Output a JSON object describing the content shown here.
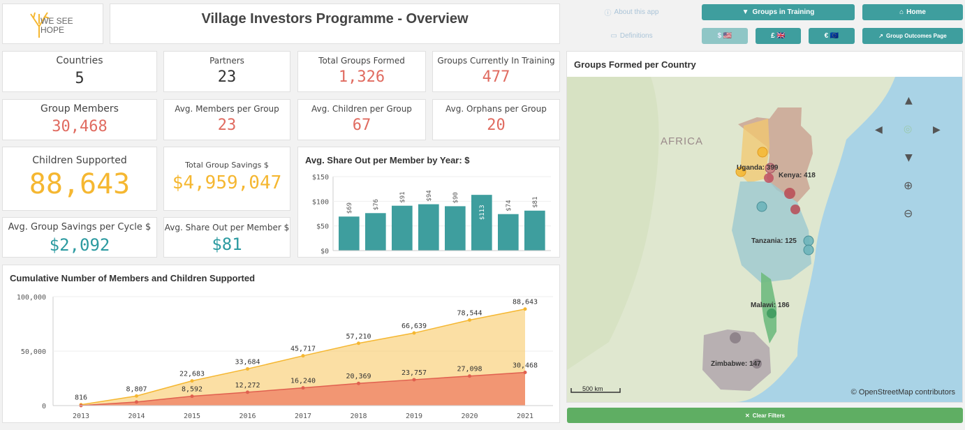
{
  "app": {
    "title": "Village Investors Programme - Overview",
    "logo": "WE SEE HOPE"
  },
  "nav": {
    "about": "About this app",
    "definitions": "Definitions",
    "groups_in_training": "Groups in Training",
    "home": "Home",
    "usd": "$ 🇺🇸",
    "gbp": "£ 🇬🇧",
    "eur": "€ 🇪🇺",
    "outcomes": "Group Outcomes Page",
    "clear_filters": "Clear Filters"
  },
  "kpis": {
    "countries": {
      "label": "Countries",
      "value": "5"
    },
    "partners": {
      "label": "Partners",
      "value": "23"
    },
    "groups_formed": {
      "label": "Total Groups Formed",
      "value": "1,326"
    },
    "groups_training": {
      "label": "Groups Currently In Training",
      "value": "477"
    },
    "members": {
      "label": "Group Members",
      "value": "30,468"
    },
    "avg_members": {
      "label": "Avg. Members per Group",
      "value": "23"
    },
    "avg_children": {
      "label": "Avg. Children per Group",
      "value": "67"
    },
    "avg_orphans": {
      "label": "Avg. Orphans per Group",
      "value": "20"
    },
    "children": {
      "label": "Children Supported",
      "value": "88,643"
    },
    "savings": {
      "label": "Total Group Savings $",
      "value": "$4,959,047"
    },
    "avg_savings_cycle": {
      "label": "Avg. Group Savings per Cycle $",
      "value": "$2,092"
    },
    "avg_shareout": {
      "label": "Avg. Share Out per Member $",
      "value": "$81"
    }
  },
  "map": {
    "title": "Groups Formed per Country",
    "region_label": "AFRICA",
    "countries": [
      {
        "name": "Uganda: 399"
      },
      {
        "name": "Kenya: 418"
      },
      {
        "name": "Tanzania: 125"
      },
      {
        "name": "Malawi: 186"
      },
      {
        "name": "Zimbabwe: 147"
      }
    ],
    "scale": "500 km",
    "attribution": "© OpenStreetMap contributors"
  },
  "chart_data": [
    {
      "type": "bar",
      "title": "Avg. Share Out per Member by Year: $",
      "categories": [
        "",
        "",
        "",
        "",
        "",
        "",
        "",
        ""
      ],
      "values": [
        69,
        76,
        91,
        94,
        90,
        113,
        74,
        81
      ],
      "labels": [
        "$69",
        "$76",
        "$91",
        "$94",
        "$90",
        "$113",
        "$74",
        "$81"
      ],
      "yticks": [
        "$150",
        "$100",
        "$50",
        "$0"
      ],
      "ylim": [
        0,
        150
      ],
      "color": "#3e9e9e"
    },
    {
      "type": "area",
      "title": "Cumulative Number of Members and Children Supported",
      "x": [
        "2013",
        "2014",
        "2015",
        "2016",
        "2017",
        "2018",
        "2019",
        "2020",
        "2021"
      ],
      "series": [
        {
          "values": [
            816,
            8807,
            22683,
            33684,
            45717,
            57210,
            66639,
            78544,
            88643
          ],
          "labels": [
            "816",
            "8,807",
            "22,683",
            "33,684",
            "45,717",
            "57,210",
            "66,639",
            "78,544",
            "88,643"
          ],
          "color": "#f7c45a"
        },
        {
          "values": [
            0,
            3300,
            8592,
            12272,
            16240,
            20369,
            23757,
            27098,
            30468
          ],
          "labels": [
            "",
            "",
            "8,592",
            "12,272",
            "16,240",
            "20,369",
            "23,757",
            "27,098",
            "30,468"
          ],
          "color": "#ef7d63"
        }
      ],
      "yticks": [
        "100,000",
        "50,000",
        "0"
      ],
      "ylim": [
        0,
        100000
      ]
    }
  ]
}
